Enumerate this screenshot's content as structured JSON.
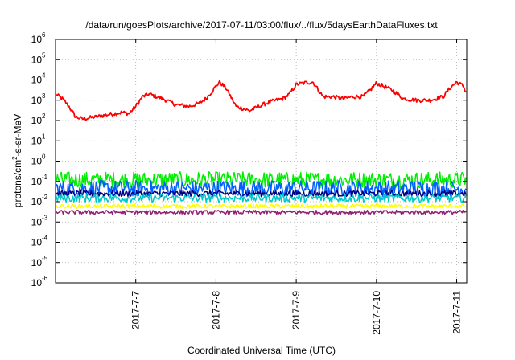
{
  "chart_data": {
    "type": "line",
    "title": "/data/run/goesPlots/archive/2017-07-11/03:00/flux/../flux/5daysEarthDataFluxes.txt",
    "xlabel": "Coordinated Universal Time (UTC)",
    "ylabel_parts": {
      "pre": "protons/cm",
      "sup": "2",
      "post": "-s-sr-MeV"
    },
    "y_scale": "log",
    "ylim": [
      1e-06,
      1000000.0
    ],
    "xlim": [
      "2017-07-06T00:00",
      "2017-07-11T03:00"
    ],
    "grid": true,
    "legend": "none",
    "y_ticks": [
      {
        "base": "10",
        "exp": "-6",
        "value": 1e-06
      },
      {
        "base": "10",
        "exp": "-5",
        "value": 1e-05
      },
      {
        "base": "10",
        "exp": "-4",
        "value": 0.0001
      },
      {
        "base": "10",
        "exp": "-3",
        "value": 0.001
      },
      {
        "base": "10",
        "exp": "-2",
        "value": 0.01
      },
      {
        "base": "10",
        "exp": "-1",
        "value": 0.1
      },
      {
        "base": "10",
        "exp": "0",
        "value": 1
      },
      {
        "base": "10",
        "exp": "1",
        "value": 10
      },
      {
        "base": "10",
        "exp": "2",
        "value": 100
      },
      {
        "base": "10",
        "exp": "3",
        "value": 1000
      },
      {
        "base": "10",
        "exp": "4",
        "value": 10000
      },
      {
        "base": "10",
        "exp": "5",
        "value": 100000
      },
      {
        "base": "10",
        "exp": "6",
        "value": 1000000
      }
    ],
    "x_ticks": [
      {
        "label": "2017-7-7",
        "value": "2017-07-07T00:00"
      },
      {
        "label": "2017-7-8",
        "value": "2017-07-08T00:00"
      },
      {
        "label": "2017-7-9",
        "value": "2017-07-09T00:00"
      },
      {
        "label": "2017-7-10",
        "value": "2017-07-10T00:00"
      },
      {
        "label": "2017-7-11",
        "value": "2017-07-11T00:00"
      }
    ],
    "series": [
      {
        "color": "#ff0000",
        "noise": 0.1,
        "x": [
          "2017-07-06T00:00",
          "2017-07-06T02:00",
          "2017-07-06T04:00",
          "2017-07-06T06:00",
          "2017-07-06T08:00",
          "2017-07-06T12:00",
          "2017-07-06T16:00",
          "2017-07-06T20:00",
          "2017-07-06T22:00",
          "2017-07-07T00:00",
          "2017-07-07T02:00",
          "2017-07-07T04:00",
          "2017-07-07T08:00",
          "2017-07-07T12:00",
          "2017-07-07T16:00",
          "2017-07-07T19:00",
          "2017-07-07T21:00",
          "2017-07-07T23:00",
          "2017-07-08T01:00",
          "2017-07-08T03:00",
          "2017-07-08T06:00",
          "2017-07-08T10:00",
          "2017-07-08T14:00",
          "2017-07-08T16:00",
          "2017-07-08T18:00",
          "2017-07-08T20:00",
          "2017-07-08T22:00",
          "2017-07-09T00:00",
          "2017-07-09T02:00",
          "2017-07-09T05:00",
          "2017-07-09T08:00",
          "2017-07-09T11:00",
          "2017-07-09T14:00",
          "2017-07-09T17:00",
          "2017-07-09T20:00",
          "2017-07-09T22:00",
          "2017-07-10T00:00",
          "2017-07-10T02:00",
          "2017-07-10T05:00",
          "2017-07-10T08:00",
          "2017-07-10T12:00",
          "2017-07-10T16:00",
          "2017-07-10T20:00",
          "2017-07-10T22:00",
          "2017-07-11T00:00",
          "2017-07-11T02:00",
          "2017-07-11T03:00"
        ],
        "y": [
          2000,
          1200,
          500,
          150,
          120,
          150,
          200,
          250,
          220,
          500,
          1500,
          2000,
          1200,
          600,
          500,
          700,
          1200,
          3000,
          8000,
          4000,
          500,
          300,
          600,
          800,
          1000,
          1200,
          2000,
          6000,
          7000,
          8000,
          1500,
          1500,
          1200,
          1500,
          1500,
          3000,
          7000,
          5000,
          3000,
          1200,
          1000,
          1000,
          1500,
          4000,
          8000,
          5000,
          2000
        ]
      },
      {
        "color": "#00ee00",
        "noise": 0.4,
        "x": [
          "2017-07-06T00:00",
          "2017-07-11T03:00"
        ],
        "y": [
          0.12,
          0.12
        ]
      },
      {
        "color": "#0060ff",
        "noise": 0.4,
        "x": [
          "2017-07-06T00:00",
          "2017-07-11T03:00"
        ],
        "y": [
          0.045,
          0.045
        ]
      },
      {
        "color": "#000080",
        "noise": 0.15,
        "x": [
          "2017-07-06T00:00",
          "2017-07-11T03:00"
        ],
        "y": [
          0.025,
          0.025
        ]
      },
      {
        "color": "#00c8c8",
        "noise": 0.2,
        "x": [
          "2017-07-06T00:00",
          "2017-07-11T03:00"
        ],
        "y": [
          0.015,
          0.015
        ]
      },
      {
        "color": "#ffff00",
        "noise": 0.1,
        "x": [
          "2017-07-06T00:00",
          "2017-07-11T03:00"
        ],
        "y": [
          0.006,
          0.006
        ]
      },
      {
        "color": "#902070",
        "noise": 0.1,
        "x": [
          "2017-07-06T00:00",
          "2017-07-11T03:00"
        ],
        "y": [
          0.003,
          0.003
        ]
      }
    ]
  }
}
